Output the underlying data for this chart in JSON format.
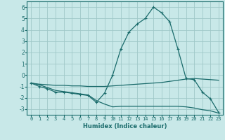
{
  "xlabel": "Humidex (Indice chaleur)",
  "background_color": "#c8e8e8",
  "grid_color": "#a0c8c8",
  "line_color": "#1a6b6b",
  "xlim": [
    -0.5,
    23.5
  ],
  "ylim": [
    -3.5,
    6.5
  ],
  "yticks": [
    -3,
    -2,
    -1,
    0,
    1,
    2,
    3,
    4,
    5,
    6
  ],
  "xticks": [
    0,
    1,
    2,
    3,
    4,
    5,
    6,
    7,
    8,
    9,
    10,
    11,
    12,
    13,
    14,
    15,
    16,
    17,
    18,
    19,
    20,
    21,
    22,
    23
  ],
  "line1_x": [
    0,
    1,
    2,
    3,
    4,
    5,
    6,
    7,
    8,
    9,
    10,
    11,
    12,
    13,
    14,
    15,
    16,
    17,
    18,
    19,
    20,
    21,
    22,
    23
  ],
  "line1_y": [
    -0.7,
    -1.0,
    -1.2,
    -1.5,
    -1.5,
    -1.6,
    -1.7,
    -1.8,
    -2.4,
    -1.6,
    0.0,
    2.3,
    3.8,
    4.5,
    5.0,
    6.0,
    5.5,
    4.7,
    2.3,
    -0.3,
    -0.4,
    -1.5,
    -2.1,
    -3.3
  ],
  "line2_x": [
    0,
    1,
    2,
    3,
    4,
    5,
    6,
    7,
    8,
    9,
    10,
    11,
    12,
    13,
    14,
    15,
    16,
    17,
    18,
    19,
    20,
    21,
    22,
    23
  ],
  "line2_y": [
    -0.7,
    -0.8,
    -0.85,
    -0.9,
    -0.9,
    -0.95,
    -0.95,
    -1.0,
    -1.0,
    -1.0,
    -0.95,
    -0.9,
    -0.85,
    -0.8,
    -0.75,
    -0.7,
    -0.65,
    -0.55,
    -0.45,
    -0.35,
    -0.3,
    -0.35,
    -0.4,
    -0.45
  ],
  "line3_x": [
    0,
    1,
    2,
    3,
    4,
    5,
    6,
    7,
    8,
    9,
    10,
    11,
    12,
    13,
    14,
    15,
    16,
    17,
    18,
    19,
    20,
    21,
    22,
    23
  ],
  "line3_y": [
    -0.7,
    -0.85,
    -1.1,
    -1.35,
    -1.45,
    -1.55,
    -1.65,
    -1.75,
    -2.25,
    -2.55,
    -2.8,
    -2.75,
    -2.75,
    -2.75,
    -2.75,
    -2.75,
    -2.75,
    -2.75,
    -2.75,
    -2.8,
    -2.9,
    -3.05,
    -3.15,
    -3.35
  ]
}
